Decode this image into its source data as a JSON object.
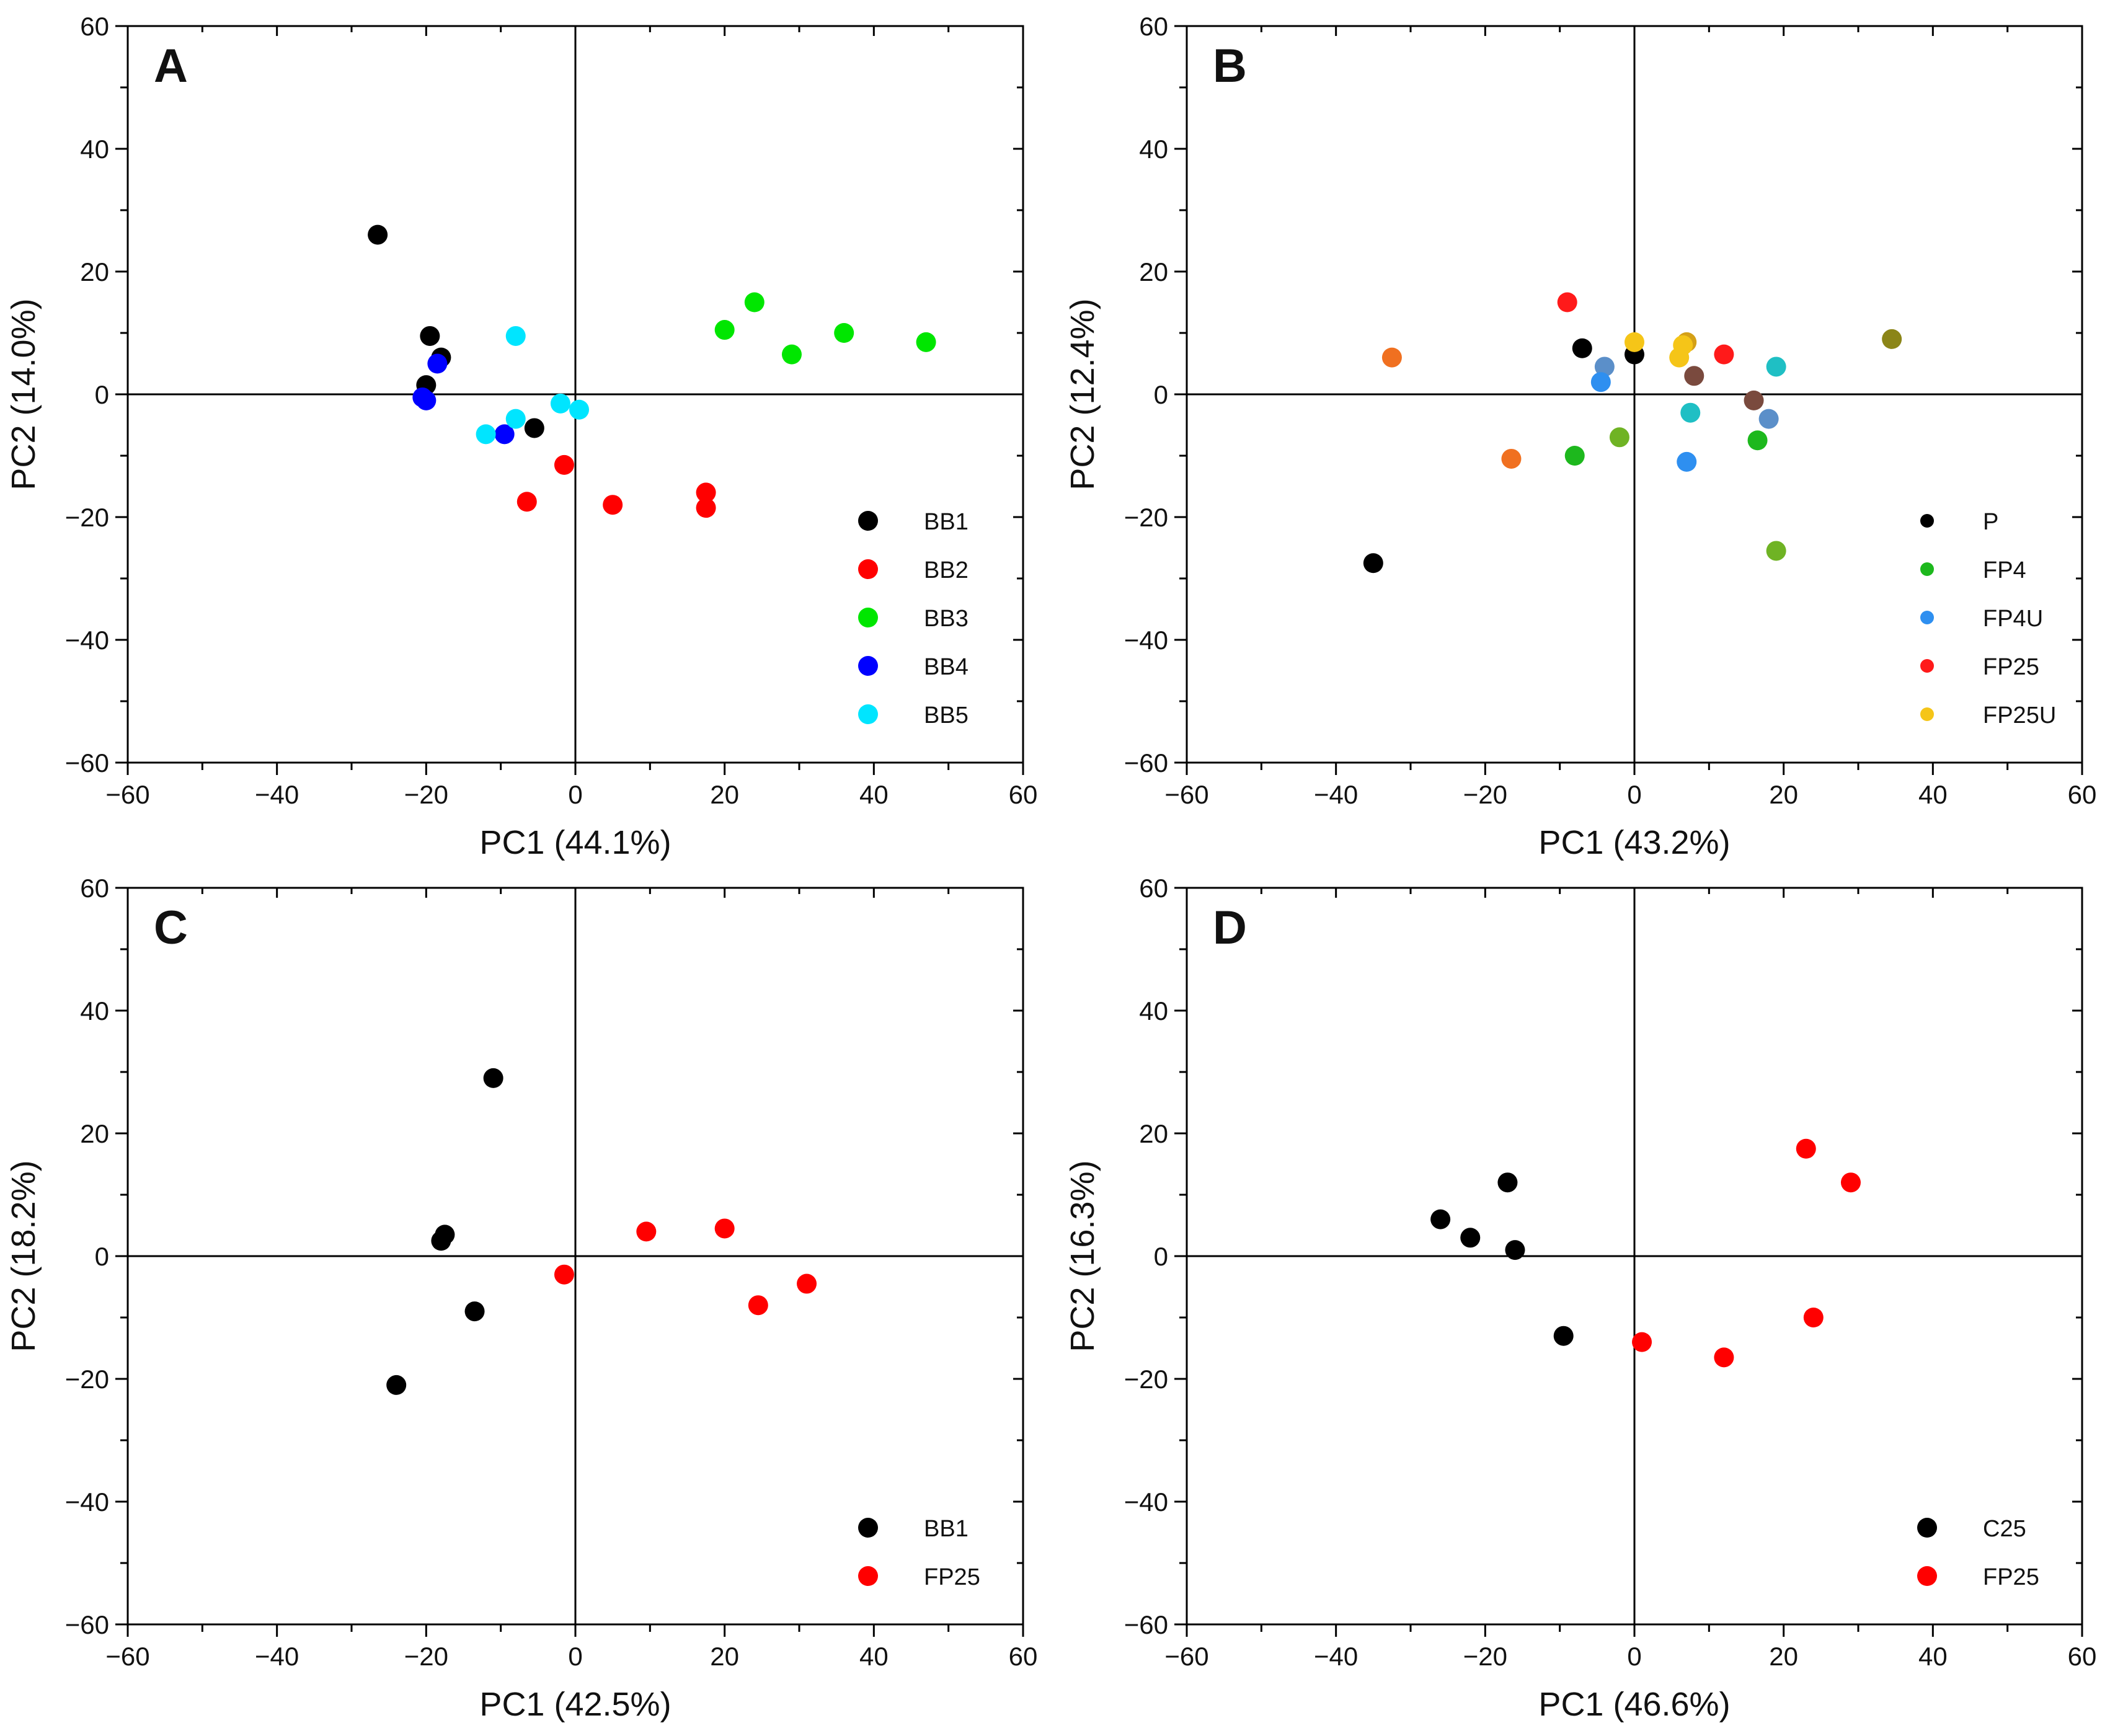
{
  "chart_data": [
    {
      "type": "scatter",
      "panel": "A",
      "xlabel": "PC1 (44.1%)",
      "ylabel": "PC2 (14.0%)",
      "xlim": [
        -60,
        60
      ],
      "ylim": [
        -60,
        60
      ],
      "xticks": [
        -60,
        -40,
        -20,
        0,
        20,
        40,
        60
      ],
      "yticks": [
        -60,
        -40,
        -20,
        0,
        20,
        40,
        60
      ],
      "legend_position": "bottom-right",
      "legend_marker": "large",
      "series": [
        {
          "name": "BB1",
          "color": "#000000",
          "x": [
            -26.5,
            -19.5,
            -18,
            -20,
            -5.5
          ],
          "y": [
            26,
            9.5,
            6,
            1.5,
            -5.5
          ]
        },
        {
          "name": "BB2",
          "color": "#ff0000",
          "x": [
            -1.5,
            -6.5,
            5,
            17.5,
            17.5
          ],
          "y": [
            -11.5,
            -17.5,
            -18,
            -16,
            -18.5
          ]
        },
        {
          "name": "BB3",
          "color": "#00e600",
          "x": [
            20,
            24,
            29,
            36,
            47
          ],
          "y": [
            10.5,
            15,
            6.5,
            10,
            8.5
          ]
        },
        {
          "name": "BB4",
          "color": "#0000ff",
          "x": [
            -18.5,
            -20.5,
            -20,
            -9.5
          ],
          "y": [
            5,
            -0.5,
            -1,
            -6.5
          ]
        },
        {
          "name": "BB5",
          "color": "#00e5ff",
          "x": [
            -8,
            -8,
            -12,
            -2,
            0.5
          ],
          "y": [
            9.5,
            -4,
            -6.5,
            -1.5,
            -2.5
          ]
        }
      ],
      "extra_points": []
    },
    {
      "type": "scatter",
      "panel": "B",
      "xlabel": "PC1 (43.2%)",
      "ylabel": "PC2 (12.4%)",
      "xlim": [
        -60,
        60
      ],
      "ylim": [
        -60,
        60
      ],
      "xticks": [
        -60,
        -40,
        -20,
        0,
        20,
        40,
        60
      ],
      "yticks": [
        -60,
        -40,
        -20,
        0,
        20,
        40,
        60
      ],
      "legend_position": "bottom-right",
      "legend_marker": "small",
      "series": [
        {
          "name": "P",
          "color": "#000000",
          "x": [
            -35,
            -7,
            0
          ],
          "y": [
            -27.5,
            7.5,
            6.5
          ]
        },
        {
          "name": "FP4",
          "color": "#1db81d",
          "x": [
            -8,
            16.5
          ],
          "y": [
            -10,
            -7.5
          ]
        },
        {
          "name": "FP4U",
          "color": "#2e8ff0",
          "x": [
            -4.5,
            7
          ],
          "y": [
            2,
            -11
          ]
        },
        {
          "name": "FP25",
          "color": "#ff1a1a",
          "x": [
            -9,
            12
          ],
          "y": [
            15,
            6.5
          ]
        },
        {
          "name": "FP25U",
          "color": "#f5c518",
          "x": [
            0,
            6.5,
            6
          ],
          "y": [
            8.5,
            8,
            6
          ]
        }
      ],
      "extra_points": [
        {
          "color": "#f07020",
          "x": [
            -32.5,
            -16.5
          ],
          "y": [
            6,
            -10.5
          ]
        },
        {
          "color": "#d4a017",
          "x": [
            7
          ],
          "y": [
            8.5
          ]
        },
        {
          "color": "#6fb324",
          "x": [
            -2,
            19
          ],
          "y": [
            -7,
            -25.5
          ]
        },
        {
          "color": "#5b8fc9",
          "x": [
            -4,
            18
          ],
          "y": [
            4.5,
            -4
          ]
        },
        {
          "color": "#1fbfc4",
          "x": [
            19,
            7.5
          ],
          "y": [
            4.5,
            -3
          ]
        },
        {
          "color": "#7a4a3e",
          "x": [
            8,
            16
          ],
          "y": [
            3,
            -1
          ]
        },
        {
          "color": "#8b8517",
          "x": [
            34.5
          ],
          "y": [
            9
          ]
        }
      ]
    },
    {
      "type": "scatter",
      "panel": "C",
      "xlabel": "PC1 (42.5%)",
      "ylabel": "PC2 (18.2%)",
      "xlim": [
        -60,
        60
      ],
      "ylim": [
        -60,
        60
      ],
      "xticks": [
        -60,
        -40,
        -20,
        0,
        20,
        40,
        60
      ],
      "yticks": [
        -60,
        -40,
        -20,
        0,
        20,
        40,
        60
      ],
      "legend_position": "bottom-right",
      "legend_marker": "large",
      "series": [
        {
          "name": "BB1",
          "color": "#000000",
          "x": [
            -11,
            -17.5,
            -18,
            -13.5,
            -24
          ],
          "y": [
            29,
            3.5,
            2.5,
            -9,
            -21
          ]
        },
        {
          "name": "FP25",
          "color": "#ff0000",
          "x": [
            -1.5,
            9.5,
            20,
            24.5,
            31
          ],
          "y": [
            -3,
            4,
            4.5,
            -8,
            -4.5
          ]
        }
      ],
      "extra_points": []
    },
    {
      "type": "scatter",
      "panel": "D",
      "xlabel": "PC1 (46.6%)",
      "ylabel": "PC2 (16.3%)",
      "xlim": [
        -60,
        60
      ],
      "ylim": [
        -60,
        60
      ],
      "xticks": [
        -60,
        -40,
        -20,
        0,
        20,
        40,
        60
      ],
      "yticks": [
        -60,
        -40,
        -20,
        0,
        20,
        40,
        60
      ],
      "legend_position": "bottom-right",
      "legend_marker": "large",
      "series": [
        {
          "name": "C25",
          "color": "#000000",
          "x": [
            -26,
            -22,
            -17,
            -16,
            -9.5
          ],
          "y": [
            6,
            3,
            12,
            1,
            -13
          ]
        },
        {
          "name": "FP25",
          "color": "#ff0000",
          "x": [
            23,
            29,
            1,
            12,
            24
          ],
          "y": [
            17.5,
            12,
            -14,
            -16.5,
            -10
          ]
        }
      ],
      "extra_points": []
    }
  ]
}
